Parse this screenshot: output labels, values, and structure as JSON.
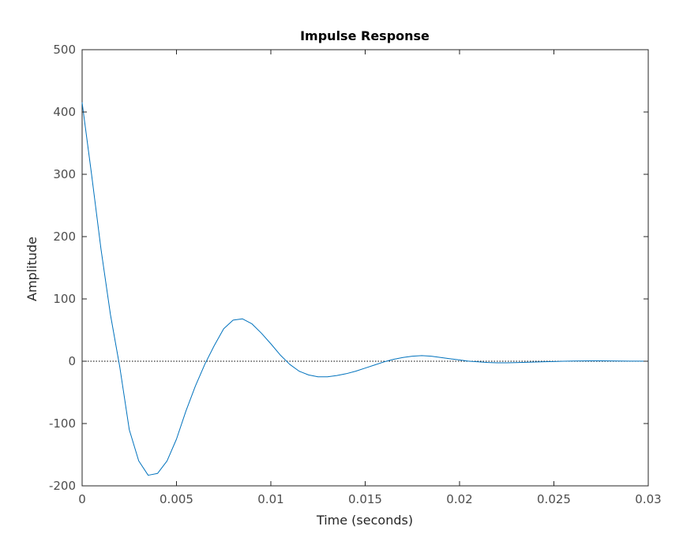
{
  "chart_data": {
    "type": "line",
    "title": "Impulse Response",
    "xlabel": "Time (seconds)",
    "ylabel": "Amplitude",
    "xlim": [
      0,
      0.03
    ],
    "ylim": [
      -200,
      500
    ],
    "xticks": [
      0,
      0.005,
      0.01,
      0.015,
      0.02,
      0.025,
      0.03
    ],
    "xtick_labels": [
      "0",
      "0.005",
      "0.01",
      "0.015",
      "0.02",
      "0.025",
      "0.03"
    ],
    "yticks": [
      -200,
      -100,
      0,
      100,
      200,
      300,
      400,
      500
    ],
    "ytick_labels": [
      "-200",
      "-100",
      "0",
      "100",
      "200",
      "300",
      "400",
      "500"
    ],
    "grid": false,
    "reference_line": {
      "y": 0,
      "style": "dotted",
      "color": "#000000"
    },
    "series": [
      {
        "name": "Impulse Response",
        "color": "#0072bd",
        "x": [
          0,
          0.0005,
          0.001,
          0.0015,
          0.002,
          0.0025,
          0.003,
          0.0035,
          0.004,
          0.0045,
          0.005,
          0.0055,
          0.006,
          0.0065,
          0.007,
          0.0075,
          0.008,
          0.0085,
          0.009,
          0.0095,
          0.01,
          0.0105,
          0.011,
          0.0115,
          0.012,
          0.0125,
          0.013,
          0.0135,
          0.014,
          0.0145,
          0.015,
          0.0155,
          0.016,
          0.0165,
          0.017,
          0.0175,
          0.018,
          0.0185,
          0.019,
          0.0195,
          0.02,
          0.0205,
          0.021,
          0.0215,
          0.022,
          0.0225,
          0.023,
          0.0235,
          0.024,
          0.0245,
          0.025,
          0.0255,
          0.026,
          0.0265,
          0.027,
          0.0275,
          0.028,
          0.0285,
          0.029,
          0.0295,
          0.03
        ],
        "y": [
          415,
          300,
          180,
          75,
          -10,
          -110,
          -160,
          -183,
          -180,
          -160,
          -125,
          -80,
          -40,
          -5,
          25,
          52,
          66,
          68,
          60,
          45,
          28,
          10,
          -5,
          -16,
          -22,
          -25,
          -25,
          -23,
          -20,
          -16,
          -11,
          -6,
          -1,
          3,
          6,
          8,
          9,
          8,
          6,
          4,
          2,
          0,
          -1,
          -2,
          -2.5,
          -2.5,
          -2.2,
          -1.8,
          -1.3,
          -0.8,
          -0.4,
          0,
          0.3,
          0.5,
          0.6,
          0.6,
          0.5,
          0.3,
          0.2,
          0.1,
          0
        ]
      }
    ]
  }
}
